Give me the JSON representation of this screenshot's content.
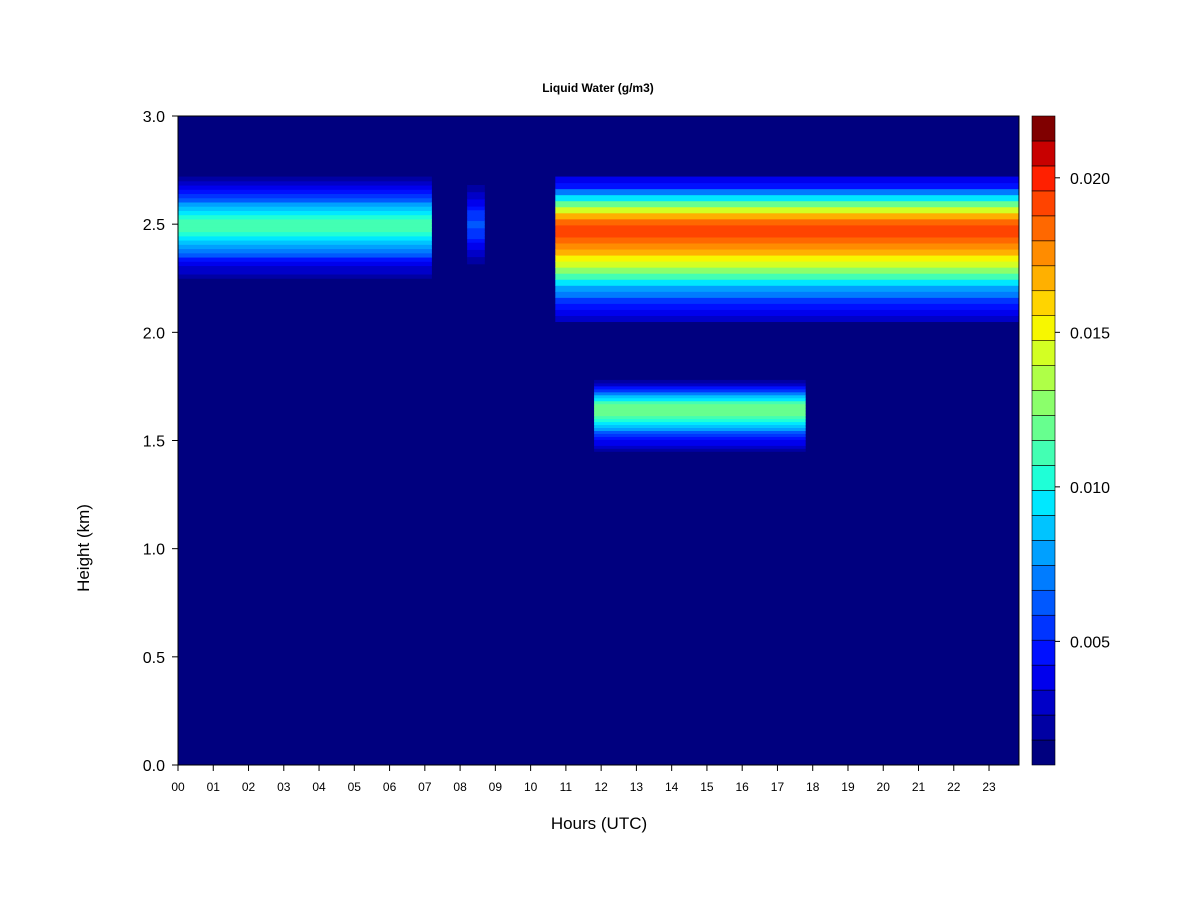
{
  "chart_data": {
    "type": "heatmap",
    "title": "Liquid Water (g/m3)",
    "xlabel": "Hours (UTC)",
    "ylabel": "Height (km)",
    "xlim": [
      0,
      23.85
    ],
    "ylim": [
      0.0,
      3.0
    ],
    "x_ticks": [
      "00",
      "01",
      "02",
      "03",
      "04",
      "05",
      "06",
      "07",
      "08",
      "09",
      "10",
      "11",
      "12",
      "13",
      "14",
      "15",
      "16",
      "17",
      "18",
      "19",
      "20",
      "21",
      "22",
      "23"
    ],
    "y_ticks": [
      "0.0",
      "0.5",
      "1.0",
      "1.5",
      "2.0",
      "2.5",
      "3.0"
    ],
    "colorbar": {
      "range": [
        0.001,
        0.022
      ],
      "ticks": [
        "0.005",
        "0.010",
        "0.015",
        "0.020"
      ],
      "tick_values": [
        0.005,
        0.01,
        0.015,
        0.02
      ],
      "colors": [
        "#00007f",
        "#0000a3",
        "#0000c8",
        "#0000ed",
        "#0010ff",
        "#0034ff",
        "#0058ff",
        "#007cff",
        "#00a0ff",
        "#00c4ff",
        "#00e8ff",
        "#1fffd7",
        "#43ffb3",
        "#67ff8f",
        "#8bff6b",
        "#afff47",
        "#d3ff23",
        "#f7f700",
        "#ffd400",
        "#ffb000",
        "#ff8c00",
        "#ff6800",
        "#ff4400",
        "#ff2000",
        "#c80000",
        "#800000"
      ]
    },
    "background_value": 0.001,
    "features": [
      {
        "name": "upper cloud layer (early)",
        "x": [
          0.0,
          7.2
        ],
        "y_center": 2.5,
        "y_range": [
          2.25,
          2.72
        ],
        "peak_value": 0.011
      },
      {
        "name": "upper cloud remnants",
        "x": [
          8.2,
          8.7
        ],
        "y_center": 2.5,
        "y_range": [
          2.3,
          2.7
        ],
        "peak_value": 0.006
      },
      {
        "name": "upper cloud layer (late)",
        "x": [
          10.7,
          23.85
        ],
        "y_center": 2.48,
        "y_range": [
          2.05,
          2.72
        ],
        "peak_value": 0.019
      },
      {
        "name": "lower cloud layer",
        "x": [
          11.8,
          17.8
        ],
        "y_center": 1.65,
        "y_range": [
          1.45,
          1.78
        ],
        "peak_value": 0.012
      }
    ]
  }
}
